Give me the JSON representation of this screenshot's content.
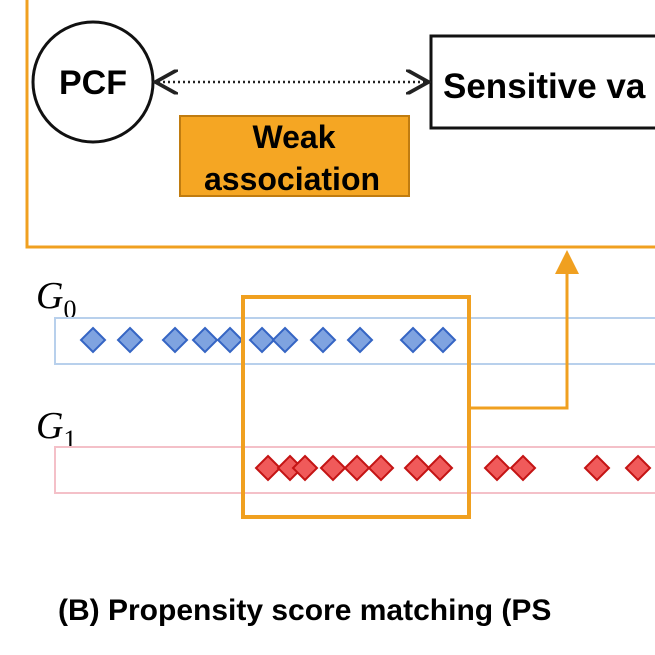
{
  "nodes": {
    "pcf": {
      "label": "PCF"
    },
    "sensitive": {
      "label": "Sensitive va"
    }
  },
  "edge": {
    "label_lines": [
      "Weak",
      "association"
    ]
  },
  "groups": [
    {
      "symbol": "G",
      "subscript": "0"
    },
    {
      "symbol": "G",
      "subscript": "1"
    }
  ],
  "caption": "(B) Propensity score matching (PS"
}
